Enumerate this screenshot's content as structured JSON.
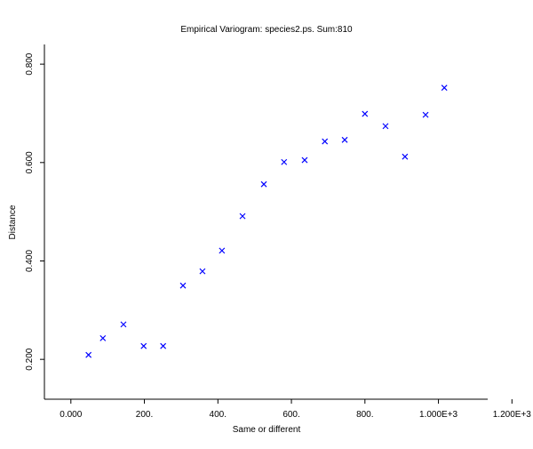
{
  "chart_data": {
    "type": "scatter",
    "title": "Empirical Variogram: species2.ps. Sum:810",
    "x_label": "Same or different",
    "y_label": "Distance",
    "marker": "x",
    "color": "#0000ff",
    "x": [
      48,
      87,
      143,
      198,
      251,
      305,
      358,
      411,
      467,
      525,
      580,
      636,
      691,
      745,
      800,
      856,
      909,
      965,
      1016
    ],
    "values": [
      0.209,
      0.243,
      0.271,
      0.227,
      0.227,
      0.35,
      0.379,
      0.421,
      0.491,
      0.556,
      0.601,
      0.605,
      0.643,
      0.646,
      0.699,
      0.674,
      0.612,
      0.697,
      0.752
    ],
    "xlim": [
      -72,
      1134
    ],
    "ylim": [
      0.119,
      0.84
    ],
    "xticks": [
      {
        "value": 0,
        "label": "0.000"
      },
      {
        "value": 200,
        "label": "200."
      },
      {
        "value": 400,
        "label": "400."
      },
      {
        "value": 600,
        "label": "600."
      },
      {
        "value": 800,
        "label": "800."
      },
      {
        "value": 1000,
        "label": "1.000E+3"
      },
      {
        "value": 1200,
        "label": "1.200E+3"
      }
    ],
    "yticks": [
      {
        "value": 0.2,
        "label": "0.200"
      },
      {
        "value": 0.4,
        "label": "0.400"
      },
      {
        "value": 0.6,
        "label": "0.600"
      },
      {
        "value": 0.8,
        "label": "0.800"
      }
    ]
  }
}
